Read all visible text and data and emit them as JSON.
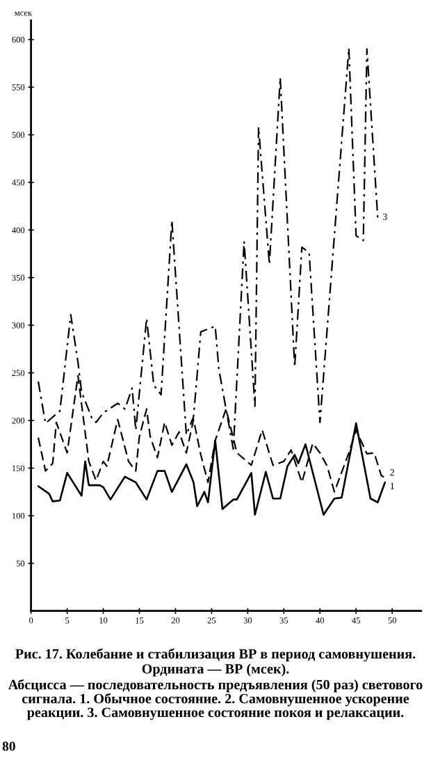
{
  "chart_data": {
    "type": "line",
    "title": "Рис. 17. Колебание и стабилизация ВР в период самовнушения.",
    "subtitle": "Ордината — ВР (мсек).",
    "ylabel": "мсек",
    "annotations": [
      "Абсцисса — последовательность предъявления (50 раз) светового сигнала. 1. Обычное состояние. 2. Самовнушенное ускорение реакции. 3. Самовнушенное состояние покоя и релаксации.",
      "80"
    ],
    "xlim": [
      0,
      54
    ],
    "ylim": [
      0,
      620
    ],
    "xticks": [
      0,
      5,
      10,
      15,
      20,
      25,
      30,
      35,
      40,
      45,
      50
    ],
    "yticks": [
      50,
      100,
      150,
      200,
      250,
      300,
      350,
      400,
      450,
      500,
      550,
      600
    ],
    "series": [
      {
        "name": "1",
        "color": "#000000",
        "line_style": "solid",
        "x": [
          1,
          2.5,
          3,
          4,
          5,
          7,
          7.5,
          8,
          9.5,
          10,
          11,
          13,
          14.5,
          16,
          17.5,
          18.5,
          19.5,
          21.5,
          22.5,
          23,
          24,
          24.5,
          25.5,
          26.5,
          28,
          28.5,
          30.5,
          31,
          32.5,
          33.5,
          34.5,
          35.5,
          36.5,
          37,
          38,
          40.5,
          42,
          43,
          45,
          47,
          48,
          49
        ],
        "values": [
          131,
          123,
          115,
          116,
          145,
          121,
          157,
          132,
          132,
          130,
          117,
          141,
          135,
          117,
          147,
          147,
          125,
          154,
          135,
          110,
          125,
          114,
          179,
          107,
          117,
          117,
          145,
          101,
          146,
          118,
          118,
          152,
          164,
          155,
          175,
          101,
          118,
          119,
          197,
          118,
          114,
          135
        ]
      },
      {
        "name": "2",
        "color": "#000000",
        "line_style": "dashed",
        "x": [
          1,
          2,
          3,
          3.5,
          5,
          6.5,
          8,
          9,
          10,
          10.5,
          12,
          13.5,
          14.5,
          15,
          16,
          16.5,
          17.5,
          18.5,
          19.5,
          20.5,
          21.5,
          22.5,
          23.5,
          24.5,
          25.5,
          27,
          28.5,
          30.5,
          32,
          33.5,
          35,
          36,
          37.5,
          39,
          40,
          41,
          42,
          44,
          45,
          46.5,
          47.5,
          48.5,
          49
        ],
        "values": [
          182,
          147,
          155,
          198,
          166,
          247,
          157,
          137,
          157,
          152,
          201,
          157,
          147,
          183,
          212,
          183,
          161,
          198,
          174,
          188,
          166,
          201,
          164,
          135,
          179,
          212,
          166,
          153,
          190,
          153,
          157,
          169,
          135,
          176,
          166,
          152,
          125,
          166,
          190,
          165,
          166,
          142,
          140
        ]
      },
      {
        "name": "3",
        "color": "#000000",
        "line_style": "dashdot",
        "x": [
          1,
          2,
          4,
          5.5,
          6.5,
          7,
          8.5,
          9,
          10,
          12,
          13,
          14,
          14.5,
          16,
          17,
          18,
          19.5,
          21.5,
          22.5,
          23.5,
          25.5,
          26,
          27,
          28,
          29.5,
          31,
          31.5,
          33,
          34.5,
          36.5,
          37.5,
          38.5,
          40,
          44,
          45,
          46,
          46.5,
          48
        ],
        "values": [
          241,
          197,
          210,
          311,
          261,
          230,
          201,
          198,
          208,
          218,
          212,
          234,
          190,
          307,
          237,
          227,
          410,
          185,
          204,
          293,
          299,
          254,
          212,
          170,
          388,
          215,
          508,
          364,
          560,
          256,
          382,
          376,
          198,
          591,
          394,
          389,
          590,
          413
        ]
      }
    ]
  }
}
